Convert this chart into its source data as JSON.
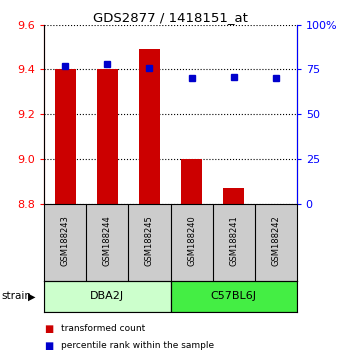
{
  "title": "GDS2877 / 1418151_at",
  "samples": [
    "GSM188243",
    "GSM188244",
    "GSM188245",
    "GSM188240",
    "GSM188241",
    "GSM188242"
  ],
  "transformed_counts": [
    9.4,
    9.4,
    9.49,
    9.0,
    8.87,
    8.8
  ],
  "percentile_ranks": [
    77,
    78,
    76,
    70,
    71,
    70
  ],
  "ylim_left": [
    8.8,
    9.6
  ],
  "ylim_right": [
    0,
    100
  ],
  "yticks_left": [
    8.8,
    9.0,
    9.2,
    9.4,
    9.6
  ],
  "yticks_right": [
    0,
    25,
    50,
    75,
    100
  ],
  "ytick_labels_right": [
    "0",
    "25",
    "50",
    "75",
    "100%"
  ],
  "groups": [
    {
      "label": "DBA2J",
      "indices": [
        0,
        1,
        2
      ],
      "color": "#ccffcc"
    },
    {
      "label": "C57BL6J",
      "indices": [
        3,
        4,
        5
      ],
      "color": "#44ee44"
    }
  ],
  "bar_color": "#cc0000",
  "dot_color": "#0000cc",
  "bar_width": 0.5,
  "bar_baseline": 8.8,
  "bg_color": "#ffffff",
  "sample_bg_color": "#cccccc",
  "legend_items": [
    {
      "color": "#cc0000",
      "label": "transformed count"
    },
    {
      "color": "#0000cc",
      "label": "percentile rank within the sample"
    }
  ]
}
